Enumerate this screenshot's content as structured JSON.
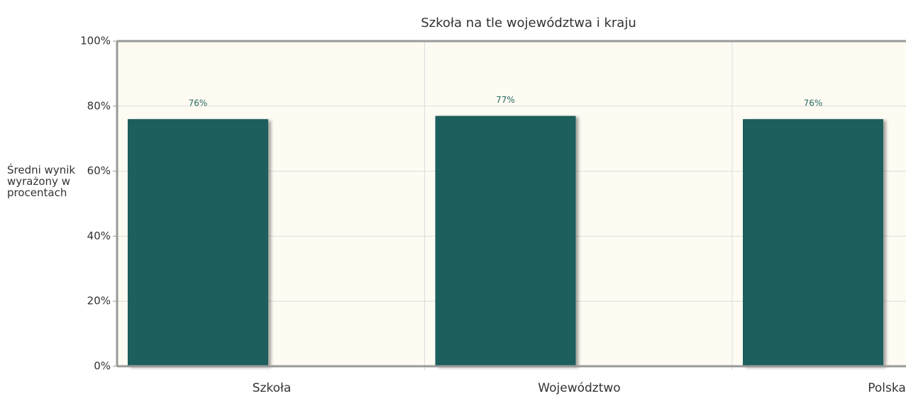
{
  "chart_data": {
    "type": "bar",
    "title": "Szkoła na tle województwa i kraju",
    "ylabel": "Średni wynik wyrażony w procentach",
    "categories": [
      "Szkoła",
      "Województwo",
      "Polska"
    ],
    "values": [
      76,
      77,
      76
    ],
    "value_labels": [
      "76%",
      "77%",
      "76%"
    ],
    "color": "#1f5f5d",
    "ylim": [
      0,
      100
    ],
    "yticks": [
      {
        "value": 0,
        "label": "0%"
      },
      {
        "value": 20,
        "label": "20%"
      },
      {
        "value": 40,
        "label": "40%"
      },
      {
        "value": 60,
        "label": "60%"
      },
      {
        "value": 80,
        "label": "80%"
      },
      {
        "value": 100,
        "label": "100%"
      }
    ],
    "grid": true
  }
}
